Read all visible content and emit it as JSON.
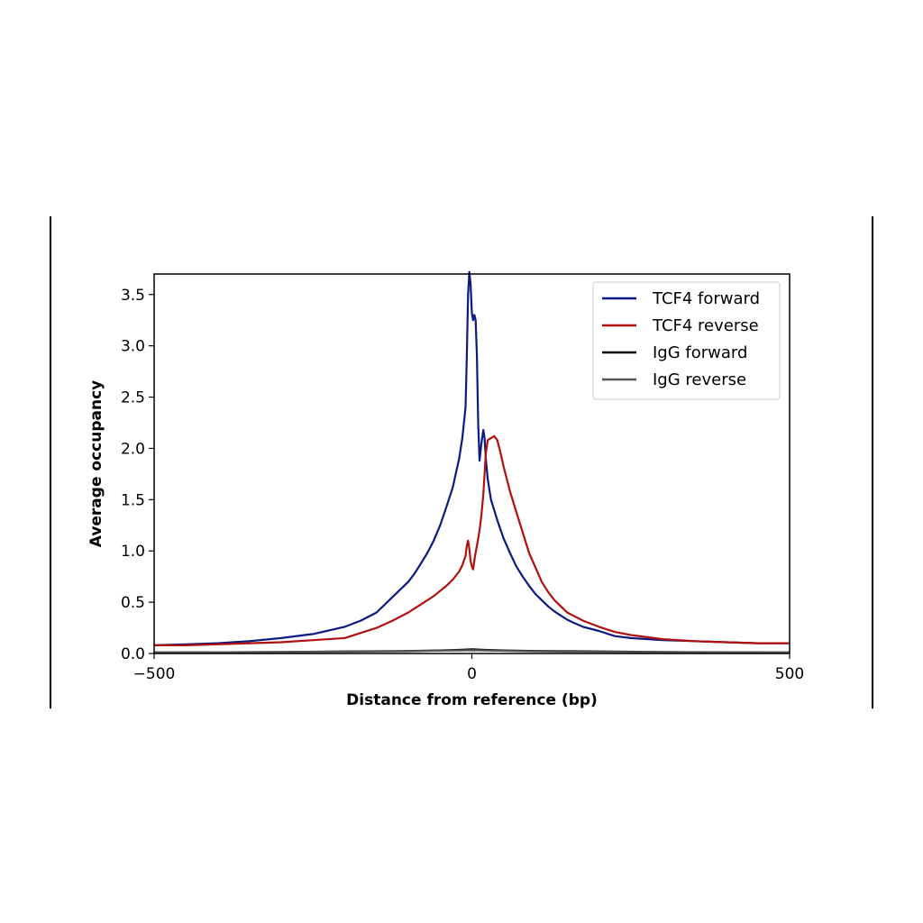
{
  "chart_data": {
    "type": "line",
    "xlabel": "Distance from reference (bp)",
    "ylabel": "Average occupancy",
    "xlim": [
      -500,
      500
    ],
    "ylim": [
      0,
      3.7
    ],
    "xticks": [
      -500,
      0,
      500
    ],
    "xtick_labels": [
      "−500",
      "0",
      "500"
    ],
    "yticks": [
      0.0,
      0.5,
      1.0,
      1.5,
      2.0,
      2.5,
      3.0,
      3.5
    ],
    "ytick_labels": [
      "0.0",
      "0.5",
      "1.0",
      "1.5",
      "2.0",
      "2.5",
      "3.0",
      "3.5"
    ],
    "grid": false,
    "legend_position": "top-right",
    "series": [
      {
        "name": "TCF4 forward",
        "color": "#0a1a80",
        "x": [
          -500,
          -450,
          -400,
          -350,
          -300,
          -250,
          -200,
          -175,
          -150,
          -125,
          -100,
          -90,
          -80,
          -70,
          -60,
          -50,
          -40,
          -30,
          -20,
          -15,
          -10,
          -8,
          -6,
          -4,
          -2,
          0,
          2,
          4,
          6,
          8,
          10,
          12,
          15,
          18,
          20,
          22,
          25,
          30,
          40,
          50,
          60,
          70,
          80,
          90,
          100,
          110,
          120,
          130,
          140,
          150,
          160,
          175,
          200,
          225,
          250,
          300,
          350,
          400,
          450,
          500
        ],
        "y": [
          0.08,
          0.09,
          0.1,
          0.12,
          0.15,
          0.19,
          0.26,
          0.32,
          0.4,
          0.55,
          0.7,
          0.78,
          0.88,
          0.98,
          1.1,
          1.25,
          1.43,
          1.62,
          1.9,
          2.1,
          2.4,
          2.9,
          3.5,
          3.72,
          3.6,
          3.32,
          3.25,
          3.3,
          3.25,
          2.9,
          2.25,
          1.88,
          2.05,
          2.18,
          2.1,
          1.9,
          1.7,
          1.5,
          1.3,
          1.12,
          0.98,
          0.85,
          0.75,
          0.66,
          0.58,
          0.52,
          0.46,
          0.41,
          0.37,
          0.33,
          0.3,
          0.26,
          0.22,
          0.17,
          0.15,
          0.13,
          0.12,
          0.11,
          0.1,
          0.1
        ]
      },
      {
        "name": "TCF4 reverse",
        "color": "#b01010",
        "x": [
          -500,
          -450,
          -400,
          -350,
          -300,
          -250,
          -200,
          -175,
          -150,
          -125,
          -100,
          -80,
          -60,
          -40,
          -30,
          -20,
          -15,
          -10,
          -8,
          -6,
          -4,
          -2,
          0,
          2,
          5,
          8,
          10,
          12,
          15,
          18,
          20,
          22,
          25,
          30,
          35,
          40,
          45,
          50,
          55,
          60,
          70,
          80,
          90,
          100,
          110,
          120,
          130,
          140,
          150,
          175,
          200,
          225,
          250,
          300,
          350,
          400,
          450,
          500
        ],
        "y": [
          0.08,
          0.08,
          0.09,
          0.1,
          0.11,
          0.13,
          0.15,
          0.2,
          0.25,
          0.32,
          0.4,
          0.48,
          0.56,
          0.66,
          0.72,
          0.8,
          0.86,
          0.95,
          1.05,
          1.1,
          1.02,
          0.9,
          0.85,
          0.82,
          0.95,
          1.05,
          1.12,
          1.2,
          1.35,
          1.55,
          1.75,
          1.95,
          2.08,
          2.1,
          2.12,
          2.08,
          1.96,
          1.82,
          1.7,
          1.58,
          1.38,
          1.18,
          0.98,
          0.84,
          0.7,
          0.6,
          0.52,
          0.46,
          0.4,
          0.32,
          0.26,
          0.21,
          0.18,
          0.14,
          0.12,
          0.11,
          0.1,
          0.1
        ]
      },
      {
        "name": "IgG forward",
        "color": "#000000",
        "x": [
          -500,
          -400,
          -300,
          -200,
          -100,
          -50,
          -20,
          0,
          20,
          50,
          100,
          200,
          300,
          400,
          500
        ],
        "y": [
          0.01,
          0.012,
          0.015,
          0.02,
          0.025,
          0.03,
          0.035,
          0.04,
          0.035,
          0.03,
          0.025,
          0.02,
          0.015,
          0.012,
          0.01
        ]
      },
      {
        "name": "IgG reverse",
        "color": "#555555",
        "x": [
          -500,
          -400,
          -300,
          -200,
          -100,
          -50,
          -20,
          0,
          20,
          50,
          100,
          200,
          300,
          400,
          500
        ],
        "y": [
          0.01,
          0.012,
          0.014,
          0.018,
          0.022,
          0.028,
          0.03,
          0.032,
          0.03,
          0.026,
          0.02,
          0.016,
          0.013,
          0.011,
          0.01
        ]
      }
    ]
  }
}
